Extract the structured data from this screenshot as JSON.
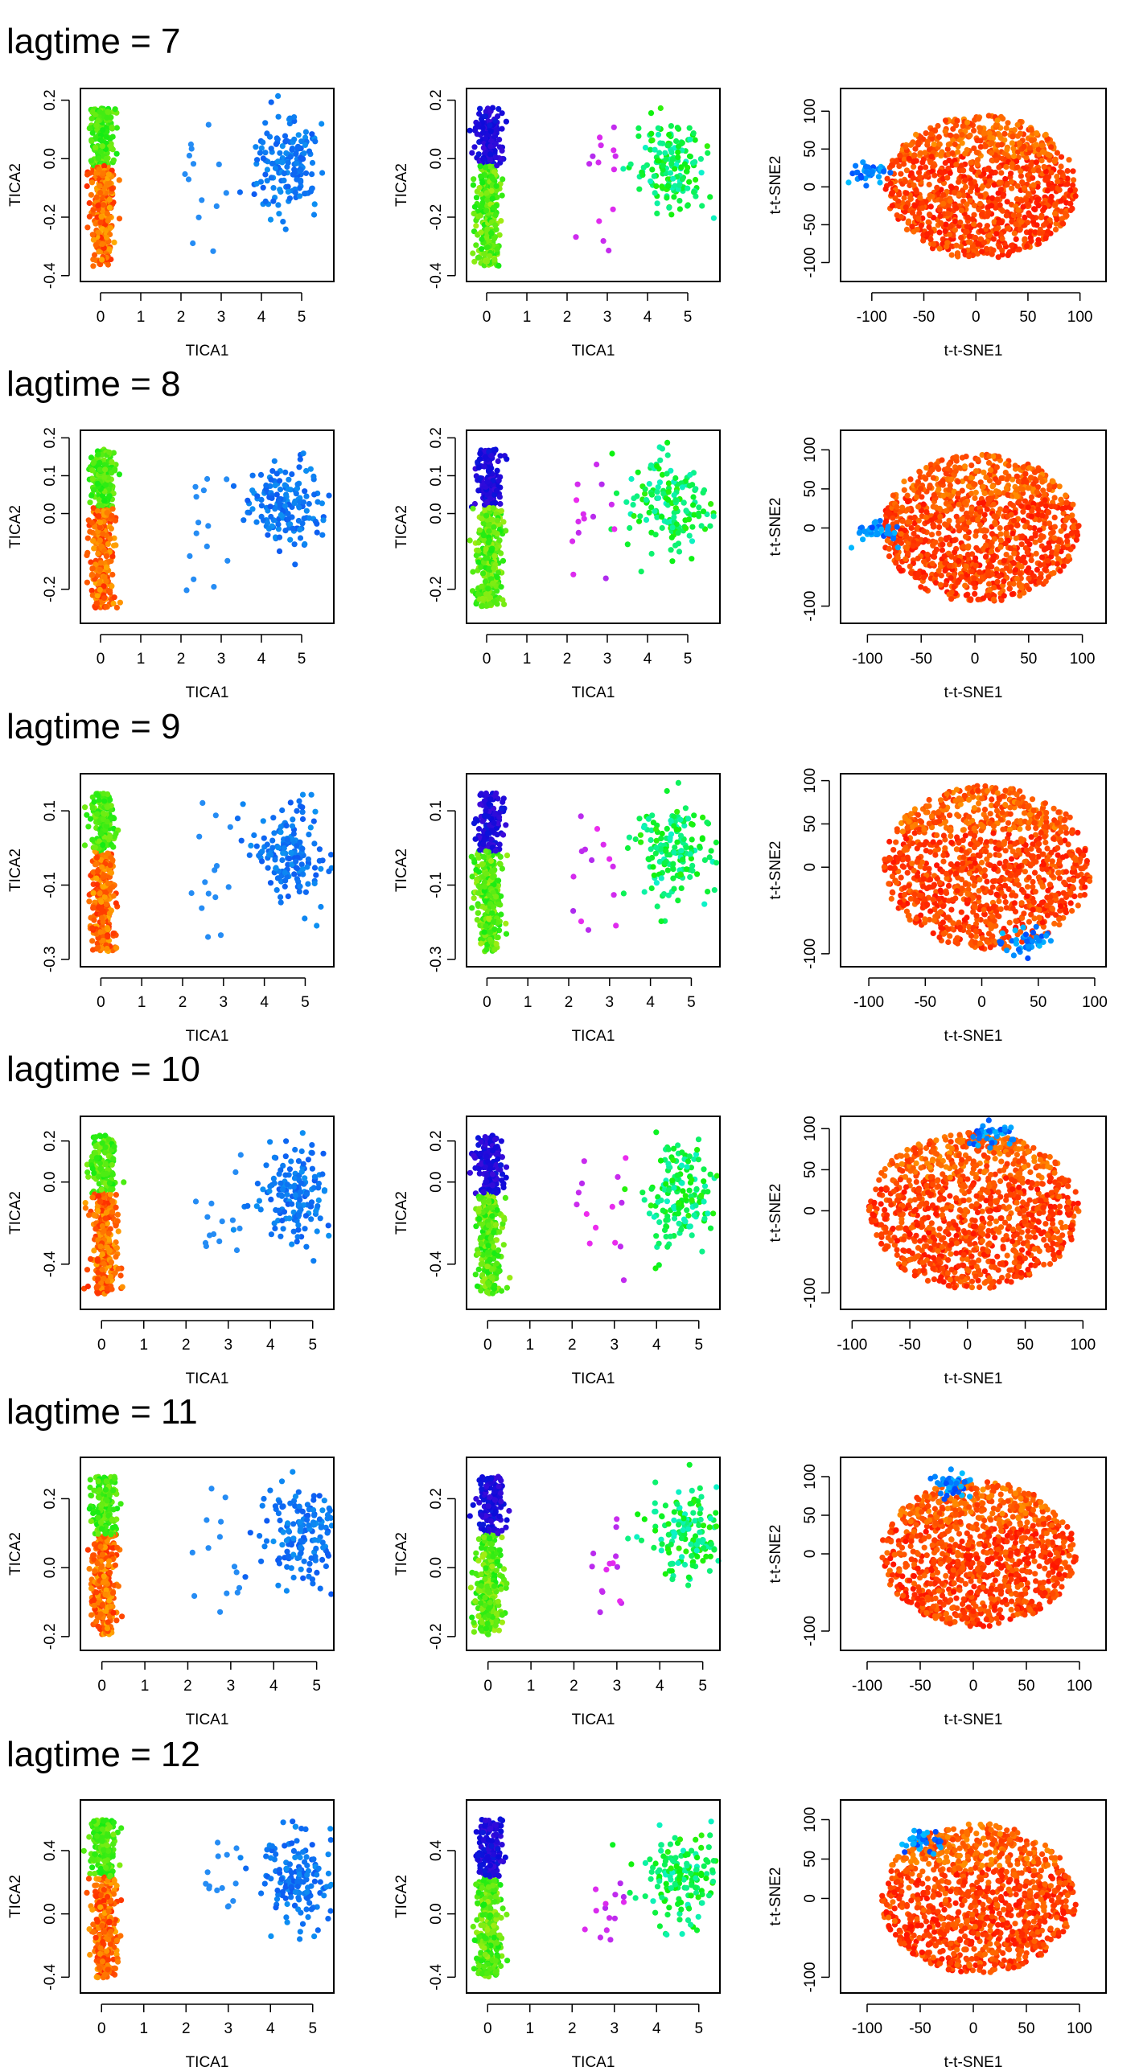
{
  "panel_titles": [
    "lagtime = 7",
    "lagtime = 8",
    "lagtime = 9",
    "lagtime = 10",
    "lagtime = 11",
    "lagtime = 12"
  ],
  "chart_data": [
    {
      "type": "scatter",
      "lagtime": 7,
      "column": "TICA",
      "title": "",
      "xlabel": "TICA1",
      "ylabel": "TICA2",
      "xlim": [
        -0.5,
        5.8
      ],
      "ylim": [
        -0.42,
        0.24
      ],
      "xticks": [
        0,
        1,
        2,
        3,
        4,
        5
      ],
      "yticks": [
        -0.4,
        -0.2,
        0.0,
        0.2
      ],
      "ytick_labels": [
        "-0.4",
        "-0.2",
        "0.0",
        "0.2"
      ]
    },
    {
      "type": "scatter",
      "lagtime": 7,
      "column": "TICA-recolored",
      "title": "",
      "xlabel": "TICA1",
      "ylabel": "TICA2",
      "xlim": [
        -0.5,
        5.8
      ],
      "ylim": [
        -0.42,
        0.24
      ],
      "xticks": [
        0,
        1,
        2,
        3,
        4,
        5
      ],
      "yticks": [
        -0.4,
        -0.2,
        0.0,
        0.2
      ],
      "ytick_labels": [
        "-0.4",
        "-0.2",
        "0.0",
        "0.2"
      ]
    },
    {
      "type": "scatter",
      "lagtime": 7,
      "column": "t-t-SNE",
      "title": "",
      "xlabel": "t-t-SNE1",
      "ylabel": "t-t-SNE2",
      "xlim": [
        -130,
        125
      ],
      "ylim": [
        -125,
        130
      ],
      "xticks": [
        -100,
        -50,
        0,
        50,
        100
      ],
      "yticks": [
        -100,
        -50,
        0,
        50,
        100
      ],
      "ytick_labels": [
        "-100",
        "-50",
        "0",
        "50",
        "100"
      ]
    },
    {
      "type": "scatter",
      "lagtime": 8,
      "column": "TICA",
      "title": "",
      "xlabel": "TICA1",
      "ylabel": "TICA2",
      "xlim": [
        -0.5,
        5.8
      ],
      "ylim": [
        -0.29,
        0.22
      ],
      "xticks": [
        0,
        1,
        2,
        3,
        4,
        5
      ],
      "yticks": [
        -0.2,
        0.0,
        0.1,
        0.2
      ],
      "ytick_labels": [
        "-0.2",
        "0.0",
        "0.1",
        "0.2"
      ]
    },
    {
      "type": "scatter",
      "lagtime": 8,
      "column": "TICA-recolored",
      "title": "",
      "xlabel": "TICA1",
      "ylabel": "TICA2",
      "xlim": [
        -0.5,
        5.8
      ],
      "ylim": [
        -0.29,
        0.22
      ],
      "xticks": [
        0,
        1,
        2,
        3,
        4,
        5
      ],
      "yticks": [
        -0.2,
        0.0,
        0.1,
        0.2
      ],
      "ytick_labels": [
        "-0.2",
        "0.0",
        "0.1",
        "0.2"
      ]
    },
    {
      "type": "scatter",
      "lagtime": 8,
      "column": "t-t-SNE",
      "title": "",
      "xlabel": "t-t-SNE1",
      "ylabel": "t-t-SNE2",
      "xlim": [
        -125,
        122
      ],
      "ylim": [
        -122,
        125
      ],
      "xticks": [
        -100,
        -50,
        0,
        50,
        100
      ],
      "yticks": [
        -100,
        0,
        50,
        100
      ],
      "ytick_labels": [
        "-100",
        "0",
        "50",
        "100"
      ]
    },
    {
      "type": "scatter",
      "lagtime": 9,
      "column": "TICA",
      "title": "",
      "xlabel": "TICA1",
      "ylabel": "TICA2",
      "xlim": [
        -0.5,
        5.7
      ],
      "ylim": [
        -0.32,
        0.2
      ],
      "xticks": [
        0,
        1,
        2,
        3,
        4,
        5
      ],
      "yticks": [
        -0.3,
        -0.1,
        0.1
      ],
      "ytick_labels": [
        "-0.3",
        "-0.1",
        "0.1"
      ]
    },
    {
      "type": "scatter",
      "lagtime": 9,
      "column": "TICA-recolored",
      "title": "",
      "xlabel": "TICA1",
      "ylabel": "TICA2",
      "xlim": [
        -0.5,
        5.7
      ],
      "ylim": [
        -0.32,
        0.2
      ],
      "xticks": [
        0,
        1,
        2,
        3,
        4,
        5
      ],
      "yticks": [
        -0.3,
        -0.1,
        0.1
      ],
      "ytick_labels": [
        "-0.3",
        "-0.1",
        "0.1"
      ]
    },
    {
      "type": "scatter",
      "lagtime": 9,
      "column": "t-t-SNE",
      "title": "",
      "xlabel": "t-t-SNE1",
      "ylabel": "t-t-SNE2",
      "xlim": [
        -125,
        110
      ],
      "ylim": [
        -115,
        108
      ],
      "xticks": [
        -100,
        -50,
        0,
        50,
        100
      ],
      "yticks": [
        -100,
        0,
        50,
        100
      ],
      "ytick_labels": [
        "-100",
        "0",
        "50",
        "100"
      ]
    },
    {
      "type": "scatter",
      "lagtime": 10,
      "column": "TICA",
      "title": "",
      "xlabel": "TICA1",
      "ylabel": "TICA2",
      "xlim": [
        -0.5,
        5.5
      ],
      "ylim": [
        -0.62,
        0.32
      ],
      "xticks": [
        0,
        1,
        2,
        3,
        4,
        5
      ],
      "yticks": [
        -0.4,
        0.0,
        0.2
      ],
      "ytick_labels": [
        "-0.4",
        "0.0",
        "0.2"
      ]
    },
    {
      "type": "scatter",
      "lagtime": 10,
      "column": "TICA-recolored",
      "title": "",
      "xlabel": "TICA1",
      "ylabel": "TICA2",
      "xlim": [
        -0.5,
        5.5
      ],
      "ylim": [
        -0.62,
        0.32
      ],
      "xticks": [
        0,
        1,
        2,
        3,
        4,
        5
      ],
      "yticks": [
        -0.4,
        0.0,
        0.2
      ],
      "ytick_labels": [
        "-0.4",
        "0.0",
        "0.2"
      ]
    },
    {
      "type": "scatter",
      "lagtime": 10,
      "column": "t-t-SNE",
      "title": "",
      "xlabel": "t-t-SNE1",
      "ylabel": "t-t-SNE2",
      "xlim": [
        -110,
        120
      ],
      "ylim": [
        -120,
        115
      ],
      "xticks": [
        -100,
        -50,
        0,
        50,
        100
      ],
      "yticks": [
        -100,
        0,
        50,
        100
      ],
      "ytick_labels": [
        "-100",
        "0",
        "50",
        "100"
      ]
    },
    {
      "type": "scatter",
      "lagtime": 11,
      "column": "TICA",
      "title": "",
      "xlabel": "TICA1",
      "ylabel": "TICA2",
      "xlim": [
        -0.5,
        5.4
      ],
      "ylim": [
        -0.24,
        0.32
      ],
      "xticks": [
        0,
        1,
        2,
        3,
        4,
        5
      ],
      "yticks": [
        -0.2,
        0.0,
        0.2
      ],
      "ytick_labels": [
        "-0.2",
        "0.0",
        "0.2"
      ]
    },
    {
      "type": "scatter",
      "lagtime": 11,
      "column": "TICA-recolored",
      "title": "",
      "xlabel": "TICA1",
      "ylabel": "TICA2",
      "xlim": [
        -0.5,
        5.4
      ],
      "ylim": [
        -0.24,
        0.32
      ],
      "xticks": [
        0,
        1,
        2,
        3,
        4,
        5
      ],
      "yticks": [
        -0.2,
        0.0,
        0.2
      ],
      "ytick_labels": [
        "-0.2",
        "0.0",
        "0.2"
      ]
    },
    {
      "type": "scatter",
      "lagtime": 11,
      "column": "t-t-SNE",
      "title": "",
      "xlabel": "t-t-SNE1",
      "ylabel": "t-t-SNE2",
      "xlim": [
        -125,
        125
      ],
      "ylim": [
        -125,
        125
      ],
      "xticks": [
        -100,
        -50,
        0,
        50,
        100
      ],
      "yticks": [
        -100,
        0,
        50,
        100
      ],
      "ytick_labels": [
        "-100",
        "0",
        "50",
        "100"
      ]
    },
    {
      "type": "scatter",
      "lagtime": 12,
      "column": "TICA",
      "title": "",
      "xlabel": "TICA1",
      "ylabel": "TICA2",
      "xlim": [
        -0.5,
        5.5
      ],
      "ylim": [
        -0.5,
        0.72
      ],
      "xticks": [
        0,
        1,
        2,
        3,
        4,
        5
      ],
      "yticks": [
        -0.4,
        0.0,
        0.4
      ],
      "ytick_labels": [
        "-0.4",
        "0.0",
        "0.4"
      ]
    },
    {
      "type": "scatter",
      "lagtime": 12,
      "column": "TICA-recolored",
      "title": "",
      "xlabel": "TICA1",
      "ylabel": "TICA2",
      "xlim": [
        -0.5,
        5.5
      ],
      "ylim": [
        -0.5,
        0.72
      ],
      "xticks": [
        0,
        1,
        2,
        3,
        4,
        5
      ],
      "yticks": [
        -0.4,
        0.0,
        0.4
      ],
      "ytick_labels": [
        "-0.4",
        "0.0",
        "0.4"
      ]
    },
    {
      "type": "scatter",
      "lagtime": 12,
      "column": "t-t-SNE",
      "title": "",
      "xlabel": "t-t-SNE1",
      "ylabel": "t-t-SNE2",
      "xlim": [
        -125,
        125
      ],
      "ylim": [
        -120,
        125
      ],
      "xticks": [
        -100,
        -50,
        0,
        50,
        100
      ],
      "yticks": [
        -100,
        0,
        50,
        100
      ],
      "ytick_labels": [
        "-100",
        "0",
        "50",
        "100"
      ]
    }
  ]
}
